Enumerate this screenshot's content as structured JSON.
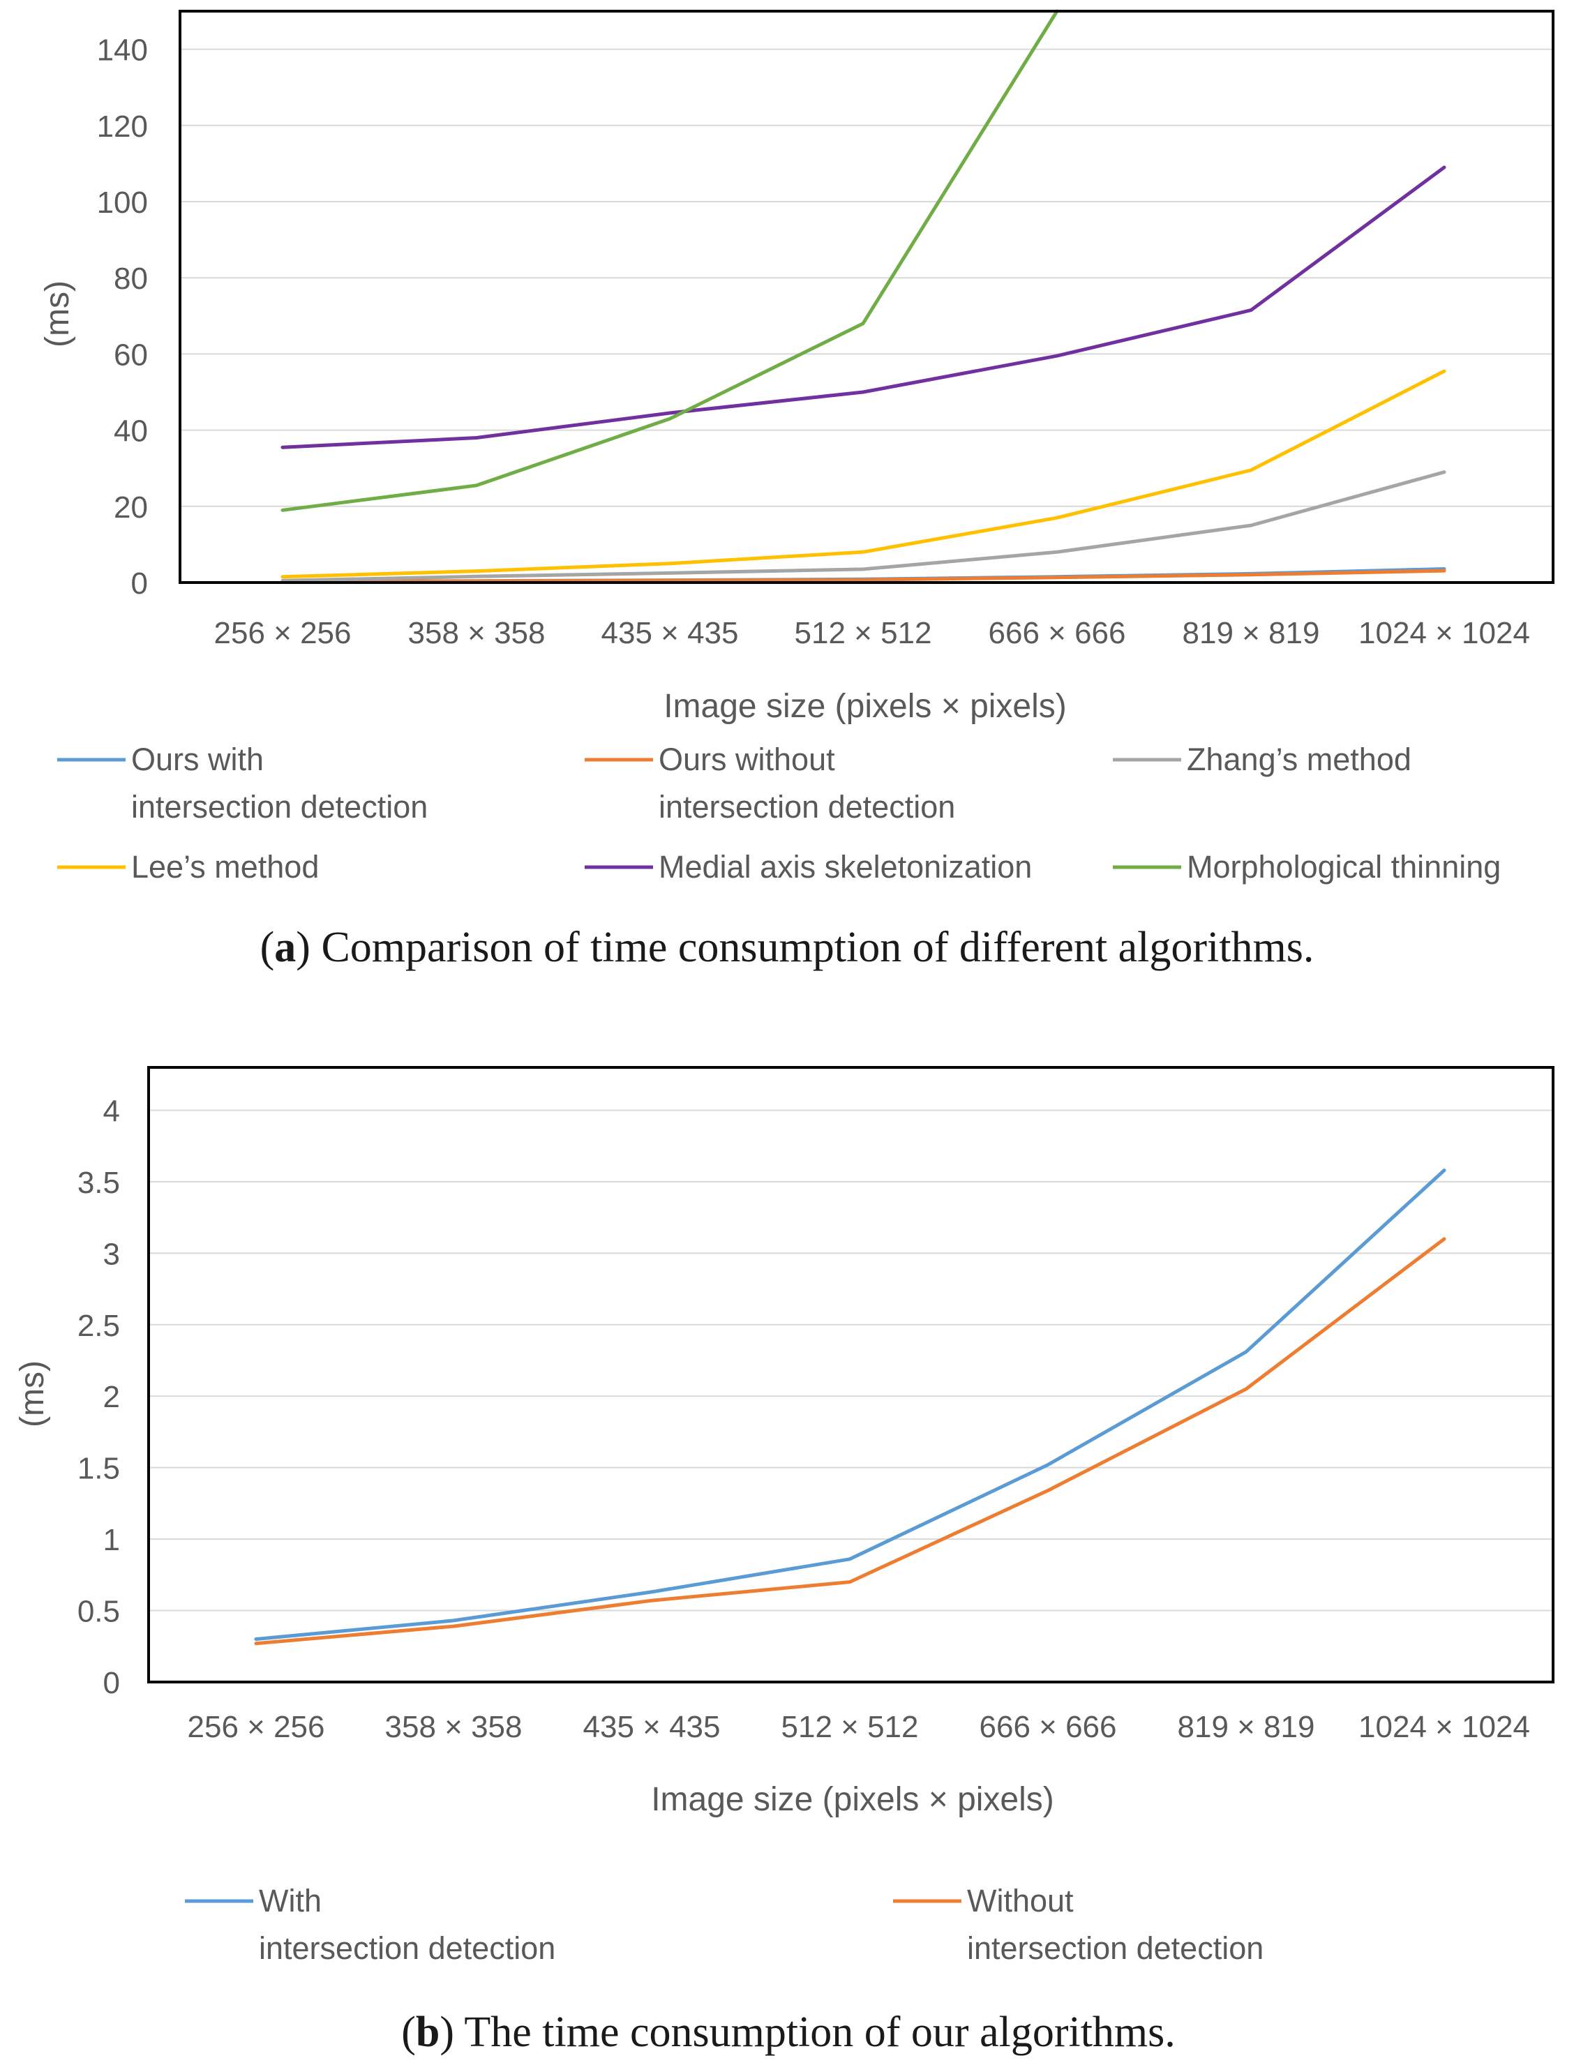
{
  "chart_data": [
    {
      "type": "line",
      "id": "a",
      "categories": [
        "256 × 256",
        "358 × 358",
        "435 × 435",
        "512 × 512",
        "666 × 666",
        "819 × 819",
        "1024 × 1024"
      ],
      "series": [
        {
          "name": "Ours with intersection detection",
          "label_lines": [
            "Ours with",
            "intersection detection"
          ],
          "color": "#5b9bd5",
          "values": [
            0.3,
            0.43,
            0.63,
            0.86,
            1.52,
            2.31,
            3.58
          ]
        },
        {
          "name": "Ours without intersection detection",
          "label_lines": [
            "Ours without",
            "intersection detection"
          ],
          "color": "#ed7d31",
          "values": [
            0.27,
            0.39,
            0.57,
            0.7,
            1.34,
            2.05,
            3.1
          ]
        },
        {
          "name": "Zhang’s method",
          "label_lines": [
            "Zhang’s method"
          ],
          "color": "#a5a5a5",
          "values": [
            0.5,
            1.6,
            2.5,
            3.5,
            8.0,
            15.0,
            29.0
          ]
        },
        {
          "name": "Lee’s method",
          "label_lines": [
            "Lee’s method"
          ],
          "color": "#ffc000",
          "values": [
            1.5,
            3.0,
            5.0,
            8.0,
            17.0,
            29.5,
            55.5
          ]
        },
        {
          "name": "Medial axis skeletonization",
          "label_lines": [
            "Medial axis skeletonization"
          ],
          "color": "#7030a0",
          "values": [
            35.5,
            38.0,
            44.5,
            50.0,
            59.5,
            71.5,
            109.0
          ]
        },
        {
          "name": "Morphological thinning",
          "label_lines": [
            "Morphological thinning"
          ],
          "color": "#70ad47",
          "values": [
            19.0,
            25.5,
            43.0,
            68.0,
            150.0,
            null,
            null
          ]
        }
      ],
      "xlabel": "Image size (pixels × pixels)",
      "ylabel": "(ms)",
      "ylim": [
        0,
        150
      ],
      "yticks": [
        0,
        20,
        40,
        60,
        80,
        100,
        120,
        140
      ],
      "ytick_labels": [
        "0",
        "20",
        "40",
        "60",
        "80",
        "100",
        "120",
        "140"
      ],
      "grid": true,
      "legend_position": "bottom",
      "caption_letter": "a",
      "caption_text": "Comparison of time consumption of different algorithms."
    },
    {
      "type": "line",
      "id": "b",
      "categories": [
        "256 × 256",
        "358 × 358",
        "435 × 435",
        "512 × 512",
        "666 × 666",
        "819 × 819",
        "1024 × 1024"
      ],
      "series": [
        {
          "name": "With intersection detection",
          "label_lines": [
            "With",
            "intersection detection"
          ],
          "color": "#5b9bd5",
          "values": [
            0.3,
            0.43,
            0.63,
            0.86,
            1.52,
            2.31,
            3.58
          ]
        },
        {
          "name": "Without intersection detection",
          "label_lines": [
            "Without",
            "intersection detection"
          ],
          "color": "#ed7d31",
          "values": [
            0.27,
            0.39,
            0.57,
            0.7,
            1.34,
            2.05,
            3.1
          ]
        }
      ],
      "xlabel": "Image size (pixels × pixels)",
      "ylabel": "(ms)",
      "ylim": [
        0,
        4.3
      ],
      "yticks": [
        0,
        0.5,
        1,
        1.5,
        2,
        2.5,
        3,
        3.5,
        4
      ],
      "ytick_labels": [
        "0",
        "0.5",
        "1",
        "1.5",
        "2",
        "2.5",
        "3",
        "3.5",
        "4"
      ],
      "grid": true,
      "legend_position": "bottom",
      "caption_letter": "b",
      "caption_text": "The time consumption of our algorithms."
    }
  ]
}
